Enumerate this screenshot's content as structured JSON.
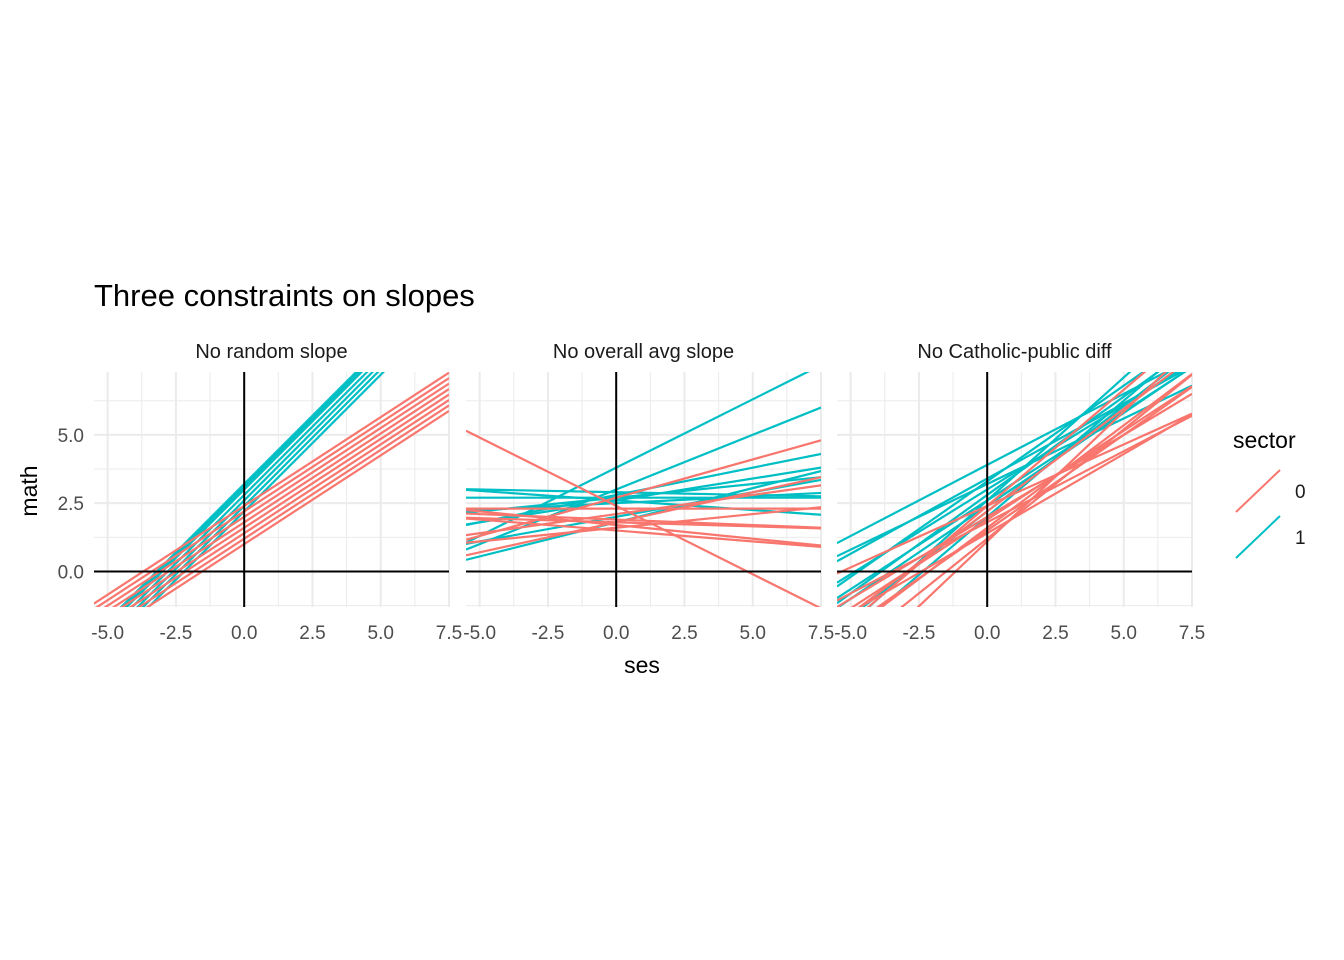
{
  "chart_data": {
    "type": "line",
    "title": "Three constraints on slopes",
    "xlabel": "ses",
    "ylabel": "math",
    "xlim": [
      -5.5,
      7.5
    ],
    "ylim": [
      -1.3,
      7.3
    ],
    "x_ticks": [
      -5.0,
      -2.5,
      0.0,
      2.5,
      5.0,
      7.5
    ],
    "x_tick_labels": [
      "-5.0",
      "-2.5",
      "0.0",
      "2.5",
      "5.0",
      "7.5"
    ],
    "y_ticks": [
      0.0,
      2.5,
      5.0
    ],
    "y_tick_labels": [
      "0.0",
      "2.5",
      "5.0"
    ],
    "grid": true,
    "reference_lines": {
      "x": 0,
      "y": 0
    },
    "legend": {
      "title": "sector",
      "position": "right",
      "entries": [
        {
          "label": "0",
          "color": "#F8766D"
        },
        {
          "label": "1",
          "color": "#00BFC4"
        }
      ]
    },
    "panels": [
      {
        "strip": "No random slope",
        "lines": [
          {
            "sector": "1",
            "intercept": 3.0,
            "slope": 1.0
          },
          {
            "sector": "1",
            "intercept": 3.1,
            "slope": 1.0
          },
          {
            "sector": "1",
            "intercept": 3.2,
            "slope": 1.0
          },
          {
            "sector": "1",
            "intercept": 2.8,
            "slope": 1.0
          },
          {
            "sector": "1",
            "intercept": 2.6,
            "slope": 1.0
          },
          {
            "sector": "1",
            "intercept": 2.4,
            "slope": 1.0
          },
          {
            "sector": "1",
            "intercept": 2.2,
            "slope": 1.0
          },
          {
            "sector": "0",
            "intercept": 2.4,
            "slope": 0.65
          },
          {
            "sector": "0",
            "intercept": 2.2,
            "slope": 0.65
          },
          {
            "sector": "0",
            "intercept": 2.0,
            "slope": 0.65
          },
          {
            "sector": "0",
            "intercept": 1.8,
            "slope": 0.65
          },
          {
            "sector": "0",
            "intercept": 1.6,
            "slope": 0.65
          },
          {
            "sector": "0",
            "intercept": 1.4,
            "slope": 0.65
          },
          {
            "sector": "0",
            "intercept": 1.2,
            "slope": 0.65
          },
          {
            "sector": "0",
            "intercept": 1.0,
            "slope": 0.65
          }
        ]
      },
      {
        "strip": "No overall avg slope",
        "lines": [
          {
            "sector": "1",
            "intercept": 3.8,
            "slope": 0.5
          },
          {
            "sector": "1",
            "intercept": 3.0,
            "slope": 0.4
          },
          {
            "sector": "1",
            "intercept": 2.8,
            "slope": 0.2
          },
          {
            "sector": "1",
            "intercept": 2.6,
            "slope": 0.16
          },
          {
            "sector": "1",
            "intercept": 2.5,
            "slope": 0.05
          },
          {
            "sector": "1",
            "intercept": 2.7,
            "slope": 0.0
          },
          {
            "sector": "1",
            "intercept": 2.6,
            "slope": -0.07
          },
          {
            "sector": "1",
            "intercept": 1.8,
            "slope": 0.25
          },
          {
            "sector": "1",
            "intercept": 2.7,
            "slope": 0.1
          },
          {
            "sector": "1",
            "intercept": 2.9,
            "slope": -0.02
          },
          {
            "sector": "1",
            "intercept": 2.0,
            "slope": 0.18
          },
          {
            "sector": "0",
            "intercept": 2.4,
            "slope": -0.5
          },
          {
            "sector": "0",
            "intercept": 2.7,
            "slope": 0.28
          },
          {
            "sector": "0",
            "intercept": 1.8,
            "slope": 0.22
          },
          {
            "sector": "0",
            "intercept": 2.1,
            "slope": 0.14
          },
          {
            "sector": "0",
            "intercept": 1.6,
            "slope": 0.1
          },
          {
            "sector": "0",
            "intercept": 2.3,
            "slope": 0.0
          },
          {
            "sector": "0",
            "intercept": 1.9,
            "slope": -0.04
          },
          {
            "sector": "0",
            "intercept": 1.8,
            "slope": -0.03
          },
          {
            "sector": "0",
            "intercept": 1.5,
            "slope": -0.08
          },
          {
            "sector": "0",
            "intercept": 1.7,
            "slope": -0.1
          }
        ]
      },
      {
        "strip": "No Catholic-public diff",
        "lines": [
          {
            "sector": "1",
            "intercept": 3.9,
            "slope": 0.52
          },
          {
            "sector": "1",
            "intercept": 3.3,
            "slope": 0.7
          },
          {
            "sector": "1",
            "intercept": 3.0,
            "slope": 0.62
          },
          {
            "sector": "1",
            "intercept": 2.8,
            "slope": 0.72
          },
          {
            "sector": "1",
            "intercept": 3.2,
            "slope": 0.48
          },
          {
            "sector": "1",
            "intercept": 2.6,
            "slope": 0.65
          },
          {
            "sector": "1",
            "intercept": 2.4,
            "slope": 0.68
          },
          {
            "sector": "1",
            "intercept": 2.2,
            "slope": 0.77
          },
          {
            "sector": "1",
            "intercept": 2.6,
            "slope": 0.9
          },
          {
            "sector": "1",
            "intercept": 2.0,
            "slope": 0.85
          },
          {
            "sector": "1",
            "intercept": 3.4,
            "slope": 0.55
          },
          {
            "sector": "0",
            "intercept": 2.4,
            "slope": 0.45
          },
          {
            "sector": "0",
            "intercept": 2.0,
            "slope": 0.6
          },
          {
            "sector": "0",
            "intercept": 1.9,
            "slope": 0.65
          },
          {
            "sector": "0",
            "intercept": 2.2,
            "slope": 0.75
          },
          {
            "sector": "0",
            "intercept": 1.6,
            "slope": 0.75
          },
          {
            "sector": "0",
            "intercept": 2.4,
            "slope": 0.85
          },
          {
            "sector": "0",
            "intercept": 1.5,
            "slope": 0.7
          },
          {
            "sector": "0",
            "intercept": 1.4,
            "slope": 0.58
          },
          {
            "sector": "0",
            "intercept": 1.8,
            "slope": 0.52
          },
          {
            "sector": "0",
            "intercept": 1.1,
            "slope": 0.95
          },
          {
            "sector": "0",
            "intercept": 1.2,
            "slope": 0.8
          }
        ]
      }
    ]
  }
}
